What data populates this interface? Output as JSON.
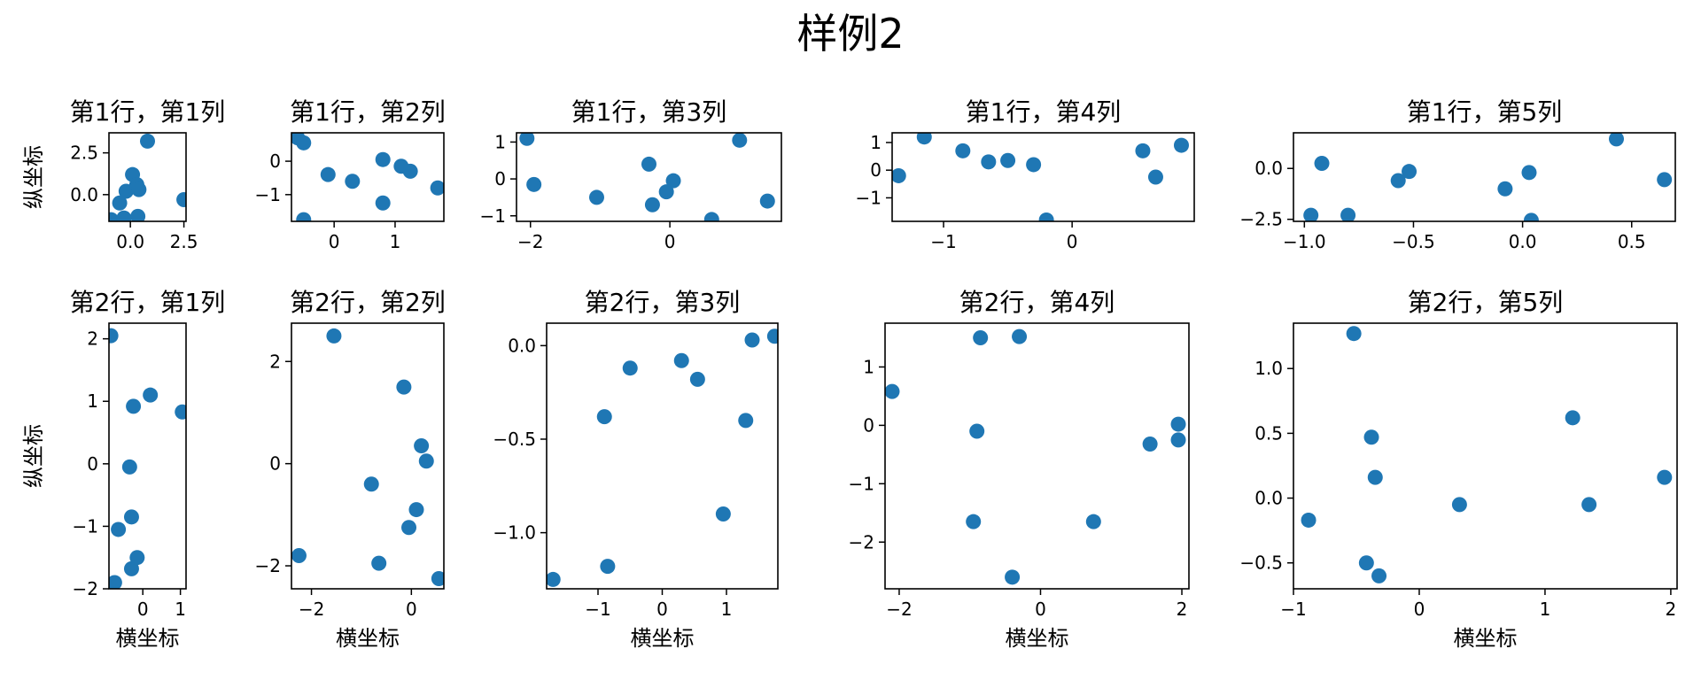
{
  "figure": {
    "title": "样例2",
    "subplot_xlabel": "横坐标",
    "subplot_ylabel": "纵坐标",
    "marker_color": "#1f77b4"
  },
  "chart_data": [
    {
      "type": "scatter",
      "title": "第1行，第1列",
      "xlabel": "",
      "ylabel": "纵坐标",
      "xlim": [
        -1.0,
        2.6
      ],
      "ylim": [
        -1.6,
        3.7
      ],
      "xticks": [
        0.0,
        2.5
      ],
      "xticklabels": [
        "0.0",
        "2.5"
      ],
      "yticks": [
        0.0,
        2.5
      ],
      "yticklabels": [
        "0.0",
        "2.5"
      ],
      "x": [
        -0.9,
        -0.5,
        -0.3,
        -0.2,
        0.1,
        0.3,
        0.35,
        0.4,
        0.8,
        2.5
      ],
      "y": [
        -1.5,
        -0.5,
        -1.4,
        0.2,
        1.2,
        0.6,
        -1.3,
        0.3,
        3.2,
        -0.3
      ]
    },
    {
      "type": "scatter",
      "title": "第1行，第2列",
      "xlabel": "",
      "ylabel": "",
      "xlim": [
        -0.7,
        1.8
      ],
      "ylim": [
        -1.8,
        0.85
      ],
      "xticks": [
        0,
        1
      ],
      "xticklabels": [
        "0",
        "1"
      ],
      "yticks": [
        0,
        -1
      ],
      "yticklabels": [
        "0",
        "−1"
      ],
      "x": [
        -0.6,
        -0.5,
        -0.5,
        -0.1,
        0.3,
        0.8,
        0.8,
        1.1,
        1.25,
        1.7
      ],
      "y": [
        0.7,
        0.55,
        -1.75,
        -0.4,
        -0.6,
        0.05,
        -1.25,
        -0.15,
        -0.3,
        -0.8
      ]
    },
    {
      "type": "scatter",
      "title": "第1行，第3列",
      "xlabel": "",
      "ylabel": "",
      "xlim": [
        -2.2,
        1.6
      ],
      "ylim": [
        -1.15,
        1.25
      ],
      "xticks": [
        -2,
        0
      ],
      "xticklabels": [
        "−2",
        "0"
      ],
      "yticks": [
        1,
        0,
        -1
      ],
      "yticklabels": [
        "1",
        "0",
        "−1"
      ],
      "x": [
        -2.05,
        -1.95,
        -1.05,
        -0.3,
        -0.25,
        -0.05,
        0.05,
        0.6,
        1.0,
        1.4
      ],
      "y": [
        1.1,
        -0.15,
        -0.5,
        0.4,
        -0.7,
        -0.35,
        -0.05,
        -1.1,
        1.05,
        -0.6
      ]
    },
    {
      "type": "scatter",
      "title": "第1行，第4列",
      "xlabel": "",
      "ylabel": "",
      "xlim": [
        -1.4,
        0.95
      ],
      "ylim": [
        -1.85,
        1.35
      ],
      "xticks": [
        -1,
        0
      ],
      "xticklabels": [
        "−1",
        "0"
      ],
      "yticks": [
        1,
        0,
        -1
      ],
      "yticklabels": [
        "1",
        "0",
        "−1"
      ],
      "x": [
        -1.35,
        -1.15,
        -0.85,
        -0.65,
        -0.5,
        -0.3,
        -0.2,
        0.55,
        0.65,
        0.85
      ],
      "y": [
        -0.2,
        1.2,
        0.7,
        0.3,
        0.35,
        0.2,
        -1.8,
        0.7,
        -0.25,
        0.9
      ]
    },
    {
      "type": "scatter",
      "title": "第1行，第5列",
      "xlabel": "",
      "ylabel": "",
      "xlim": [
        -1.05,
        0.7
      ],
      "ylim": [
        -2.6,
        1.75
      ],
      "xticks": [
        -1.0,
        -0.5,
        0.0,
        0.5
      ],
      "xticklabels": [
        "−1.0",
        "−0.5",
        "0.0",
        "0.5"
      ],
      "yticks": [
        0.0,
        -2.5
      ],
      "yticklabels": [
        "0.0",
        "−2.5"
      ],
      "x": [
        -0.97,
        -0.92,
        -0.8,
        -0.57,
        -0.52,
        -0.08,
        0.03,
        0.04,
        0.43,
        0.65
      ],
      "y": [
        -2.3,
        0.25,
        -2.3,
        -0.6,
        -0.15,
        -1.0,
        -0.2,
        -2.55,
        1.45,
        -0.55
      ]
    },
    {
      "type": "scatter",
      "title": "第2行，第1列",
      "xlabel": "横坐标",
      "ylabel": "纵坐标",
      "xlim": [
        -0.9,
        1.15
      ],
      "ylim": [
        -2.0,
        2.25
      ],
      "xticks": [
        0,
        1
      ],
      "xticklabels": [
        "0",
        "1"
      ],
      "yticks": [
        2,
        1,
        0,
        -1,
        -2
      ],
      "yticklabels": [
        "2",
        "1",
        "0",
        "−1",
        "−2"
      ],
      "x": [
        -0.85,
        -0.75,
        -0.65,
        -0.35,
        -0.3,
        -0.3,
        -0.25,
        -0.15,
        0.2,
        1.05
      ],
      "y": [
        2.05,
        -1.9,
        -1.05,
        -0.05,
        -1.68,
        -0.85,
        0.92,
        -1.5,
        1.1,
        0.83
      ]
    },
    {
      "type": "scatter",
      "title": "第2行，第2列",
      "xlabel": "横坐标",
      "ylabel": "",
      "xlim": [
        -2.4,
        0.65
      ],
      "ylim": [
        -2.45,
        2.75
      ],
      "xticks": [
        -2,
        0
      ],
      "xticklabels": [
        "−2",
        "0"
      ],
      "yticks": [
        2,
        0,
        -2
      ],
      "yticklabels": [
        "2",
        "0",
        "−2"
      ],
      "x": [
        -2.25,
        -1.55,
        -0.8,
        -0.65,
        -0.15,
        -0.05,
        0.1,
        0.2,
        0.3,
        0.55
      ],
      "y": [
        -1.8,
        2.5,
        -0.4,
        -1.95,
        1.5,
        -1.25,
        -0.9,
        0.35,
        0.05,
        -2.25
      ]
    },
    {
      "type": "scatter",
      "title": "第2行，第3列",
      "xlabel": "横坐标",
      "ylabel": "",
      "xlim": [
        -1.8,
        1.8
      ],
      "ylim": [
        -1.3,
        0.12
      ],
      "xticks": [
        -1,
        0,
        1
      ],
      "xticklabels": [
        "−1",
        "0",
        "1"
      ],
      "yticks": [
        0.0,
        -0.5,
        -1.0
      ],
      "yticklabels": [
        "0.0",
        "−0.5",
        "−1.0"
      ],
      "x": [
        -1.7,
        -0.9,
        -0.85,
        -0.5,
        0.3,
        0.55,
        0.95,
        1.3,
        1.4,
        1.75
      ],
      "y": [
        -1.25,
        -0.38,
        -1.18,
        -0.12,
        -0.08,
        -0.18,
        -0.9,
        -0.4,
        0.03,
        0.05
      ]
    },
    {
      "type": "scatter",
      "title": "第2行，第4列",
      "xlabel": "横坐标",
      "ylabel": "",
      "xlim": [
        -2.2,
        2.1
      ],
      "ylim": [
        -2.8,
        1.75
      ],
      "xticks": [
        -2,
        0,
        2
      ],
      "xticklabels": [
        "−2",
        "0",
        "2"
      ],
      "yticks": [
        1,
        0,
        -1,
        -2
      ],
      "yticklabels": [
        "1",
        "0",
        "−1",
        "−2"
      ],
      "x": [
        -2.1,
        -0.95,
        -0.9,
        -0.85,
        -0.4,
        -0.3,
        0.75,
        1.55,
        1.95,
        1.95
      ],
      "y": [
        0.58,
        -1.65,
        -0.1,
        1.5,
        -2.6,
        1.52,
        -1.65,
        -0.32,
        0.02,
        -0.25
      ]
    },
    {
      "type": "scatter",
      "title": "第2行，第5列",
      "xlabel": "横坐标",
      "ylabel": "",
      "xlim": [
        -1.0,
        2.05
      ],
      "ylim": [
        -0.7,
        1.35
      ],
      "xticks": [
        -1,
        0,
        1,
        2
      ],
      "xticklabels": [
        "−1",
        "0",
        "1",
        "2"
      ],
      "yticks": [
        1.0,
        0.5,
        0.0,
        -0.5
      ],
      "yticklabels": [
        "1.0",
        "0.5",
        "0.0",
        "−0.5"
      ],
      "x": [
        -0.88,
        -0.52,
        -0.42,
        -0.38,
        -0.35,
        -0.32,
        0.32,
        1.22,
        1.35,
        1.95
      ],
      "y": [
        -0.17,
        1.27,
        -0.5,
        0.47,
        0.16,
        -0.6,
        -0.05,
        0.62,
        -0.05,
        0.16
      ]
    }
  ]
}
